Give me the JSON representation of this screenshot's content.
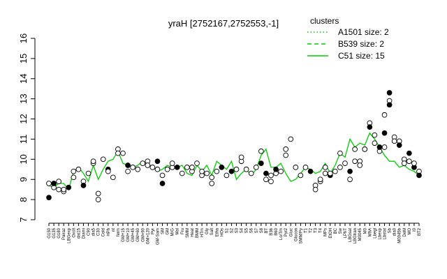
{
  "chart_data": {
    "type": "line",
    "title": "yraH [2752167,2752553,-1]",
    "xlabel": "",
    "ylabel": "",
    "ylim": [
      7,
      16
    ],
    "yticks": [
      7,
      8,
      9,
      10,
      11,
      12,
      13,
      14,
      15,
      16
    ],
    "grid": false,
    "legend": {
      "title": "clusters",
      "position": "top-right",
      "entries": [
        {
          "label": "A1501 size: 2",
          "style": "dotted"
        },
        {
          "label": "B539 size: 2",
          "style": "dashed"
        },
        {
          "label": "C51 size: 15",
          "style": "solid"
        }
      ]
    },
    "colors": {
      "line": "#00cc00",
      "point_fill": "#ffffff",
      "point_dark": "#000000"
    },
    "xtick_labels": [
      "G150",
      "G135",
      "G180",
      "Pairaz",
      "LBGexp",
      "Oxctl",
      "dat15",
      "Diami",
      "C90",
      "dia5",
      "C30",
      "Cold",
      "HPh",
      "nt",
      "ferm",
      "GM+15",
      "GM+10",
      "GM+45",
      "GM+60",
      "GM+90",
      "GM+120",
      "Pyr",
      "GM-Sam",
      "SM",
      "GM",
      "M/G",
      "Mal",
      "Fru",
      "SMM",
      "Heat",
      "BMM",
      "HTm",
      "Gly",
      "Salt",
      "Etha",
      "HOs",
      "S1",
      "S2",
      "S3",
      "S4",
      "S5",
      "S6",
      "S7",
      "S8",
      "BT",
      "B36",
      "B60",
      "Lo/Tm",
      "Pyr2",
      "Gluc",
      "Glucon",
      "SMM/Py",
      "T1",
      "T2",
      "T3",
      "T4",
      "MPs",
      "EtOH",
      "BC",
      "Sw",
      "LPhT",
      "LBGsat",
      "LBGtran",
      "M0045",
      "M0",
      "M9A",
      "Lbegl",
      "Lbexp",
      "Lbstat",
      "Sb",
      "dia0",
      "M0045b",
      "DeM",
      "MO",
      "I0",
      "BT2"
    ],
    "y_values": [
      8.7,
      8.6,
      8.8,
      8.8,
      8.5,
      9.4,
      9.6,
      9.3,
      8.9,
      9.7,
      9.0,
      9.5,
      9.9,
      10.0,
      10.4,
      9.8,
      9.7,
      9.6,
      9.7,
      9.9,
      9.8,
      9.6,
      9.4,
      9.5,
      9.7,
      9.6,
      9.6,
      9.7,
      9.3,
      9.2,
      9.7,
      9.4,
      9.7,
      9.2,
      9.9,
      9.7,
      9.5,
      9.9,
      9.0,
      9.3,
      9.5,
      9.2,
      9.5,
      10.2,
      10.5,
      9.6,
      9.6,
      9.8,
      9.3,
      8.9,
      9.0,
      9.3,
      9.6,
      9.5,
      9.3,
      9.4,
      9.8,
      9.3,
      9.7,
      10.3,
      10.1,
      11.0,
      10.6,
      10.8,
      10.7,
      11.3,
      11.0,
      10.6,
      10.2,
      9.9,
      9.9,
      9.6,
      9.7,
      9.5,
      9.4,
      9.2
    ],
    "points": [
      {
        "x": 0,
        "y": 8.8
      },
      {
        "x": 0,
        "y": 8.1
      },
      {
        "x": 1,
        "y": 8.6
      },
      {
        "x": 1,
        "y": 8.8
      },
      {
        "x": 2,
        "y": 8.9
      },
      {
        "x": 2,
        "y": 8.5
      },
      {
        "x": 3,
        "y": 8.4
      },
      {
        "x": 3,
        "y": 8.5
      },
      {
        "x": 4,
        "y": 8.6
      },
      {
        "x": 5,
        "y": 9.1
      },
      {
        "x": 5,
        "y": 9.4
      },
      {
        "x": 6,
        "y": 9.5
      },
      {
        "x": 7,
        "y": 8.9
      },
      {
        "x": 7,
        "y": 8.7
      },
      {
        "x": 8,
        "y": 9.3
      },
      {
        "x": 9,
        "y": 9.8
      },
      {
        "x": 9,
        "y": 9.9
      },
      {
        "x": 10,
        "y": 8.3
      },
      {
        "x": 10,
        "y": 8.0
      },
      {
        "x": 11,
        "y": 10.0
      },
      {
        "x": 12,
        "y": 9.5
      },
      {
        "x": 12,
        "y": 9.4
      },
      {
        "x": 13,
        "y": 9.1
      },
      {
        "x": 14,
        "y": 10.5
      },
      {
        "x": 14,
        "y": 10.3
      },
      {
        "x": 15,
        "y": 10.3
      },
      {
        "x": 16,
        "y": 9.7
      },
      {
        "x": 16,
        "y": 9.4
      },
      {
        "x": 17,
        "y": 9.6
      },
      {
        "x": 18,
        "y": 9.5
      },
      {
        "x": 19,
        "y": 9.8
      },
      {
        "x": 20,
        "y": 9.9
      },
      {
        "x": 20,
        "y": 9.7
      },
      {
        "x": 21,
        "y": 9.6
      },
      {
        "x": 22,
        "y": 9.9
      },
      {
        "x": 22,
        "y": 9.5
      },
      {
        "x": 23,
        "y": 9.2
      },
      {
        "x": 23,
        "y": 8.8
      },
      {
        "x": 24,
        "y": 9.5
      },
      {
        "x": 25,
        "y": 9.6
      },
      {
        "x": 25,
        "y": 9.8
      },
      {
        "x": 26,
        "y": 9.6
      },
      {
        "x": 27,
        "y": 9.3
      },
      {
        "x": 28,
        "y": 9.6
      },
      {
        "x": 29,
        "y": 9.4
      },
      {
        "x": 29,
        "y": 9.6
      },
      {
        "x": 30,
        "y": 9.8
      },
      {
        "x": 31,
        "y": 9.2
      },
      {
        "x": 31,
        "y": 9.4
      },
      {
        "x": 32,
        "y": 9.3
      },
      {
        "x": 33,
        "y": 9.1
      },
      {
        "x": 33,
        "y": 8.8
      },
      {
        "x": 34,
        "y": 9.4
      },
      {
        "x": 35,
        "y": 9.6
      },
      {
        "x": 36,
        "y": 9.2
      },
      {
        "x": 37,
        "y": 9.4
      },
      {
        "x": 38,
        "y": 9.5
      },
      {
        "x": 39,
        "y": 9.9
      },
      {
        "x": 39,
        "y": 10.1
      },
      {
        "x": 40,
        "y": 9.5
      },
      {
        "x": 41,
        "y": 9.3
      },
      {
        "x": 42,
        "y": 9.6
      },
      {
        "x": 43,
        "y": 9.8
      },
      {
        "x": 43,
        "y": 10.4
      },
      {
        "x": 44,
        "y": 9.0
      },
      {
        "x": 44,
        "y": 9.3
      },
      {
        "x": 45,
        "y": 8.9
      },
      {
        "x": 45,
        "y": 9.2
      },
      {
        "x": 46,
        "y": 9.3
      },
      {
        "x": 46,
        "y": 9.5
      },
      {
        "x": 47,
        "y": 9.4
      },
      {
        "x": 48,
        "y": 10.2
      },
      {
        "x": 48,
        "y": 10.5
      },
      {
        "x": 49,
        "y": 11.0
      },
      {
        "x": 50,
        "y": 9.6
      },
      {
        "x": 51,
        "y": 9.2
      },
      {
        "x": 52,
        "y": 9.6
      },
      {
        "x": 53,
        "y": 9.4
      },
      {
        "x": 54,
        "y": 8.7
      },
      {
        "x": 54,
        "y": 8.5
      },
      {
        "x": 55,
        "y": 8.9
      },
      {
        "x": 55,
        "y": 9.0
      },
      {
        "x": 56,
        "y": 9.3
      },
      {
        "x": 56,
        "y": 9.6
      },
      {
        "x": 57,
        "y": 9.2
      },
      {
        "x": 57,
        "y": 9.3
      },
      {
        "x": 58,
        "y": 9.4
      },
      {
        "x": 59,
        "y": 10.3
      },
      {
        "x": 59,
        "y": 9.6
      },
      {
        "x": 60,
        "y": 9.8
      },
      {
        "x": 61,
        "y": 9.4
      },
      {
        "x": 61,
        "y": 9.0
      },
      {
        "x": 62,
        "y": 9.9
      },
      {
        "x": 62,
        "y": 10.5
      },
      {
        "x": 63,
        "y": 9.9
      },
      {
        "x": 63,
        "y": 9.7
      },
      {
        "x": 64,
        "y": 10.5
      },
      {
        "x": 64,
        "y": 10.5
      },
      {
        "x": 65,
        "y": 11.8
      },
      {
        "x": 65,
        "y": 11.6
      },
      {
        "x": 66,
        "y": 11.2
      },
      {
        "x": 66,
        "y": 10.8
      },
      {
        "x": 67,
        "y": 10.4
      },
      {
        "x": 67,
        "y": 10.6
      },
      {
        "x": 68,
        "y": 12.2
      },
      {
        "x": 68,
        "y": 11.3
      },
      {
        "x": 68,
        "y": 10.6
      },
      {
        "x": 69,
        "y": 13.3
      },
      {
        "x": 69,
        "y": 12.9
      },
      {
        "x": 69,
        "y": 12.7
      },
      {
        "x": 70,
        "y": 11.1
      },
      {
        "x": 70,
        "y": 10.9
      },
      {
        "x": 71,
        "y": 10.9
      },
      {
        "x": 71,
        "y": 10.7
      },
      {
        "x": 72,
        "y": 10.0
      },
      {
        "x": 72,
        "y": 9.8
      },
      {
        "x": 73,
        "y": 10.3
      },
      {
        "x": 73,
        "y": 9.9
      },
      {
        "x": 74,
        "y": 9.6
      },
      {
        "x": 74,
        "y": 9.8
      },
      {
        "x": 75,
        "y": 9.4
      },
      {
        "x": 75,
        "y": 9.2
      }
    ],
    "dark_point_indices": [
      1,
      3,
      8,
      13,
      20,
      26,
      34,
      37,
      41,
      53,
      55,
      62,
      65,
      69,
      77,
      84,
      90,
      99,
      103,
      105,
      107,
      109,
      113,
      116,
      118,
      121
    ]
  }
}
